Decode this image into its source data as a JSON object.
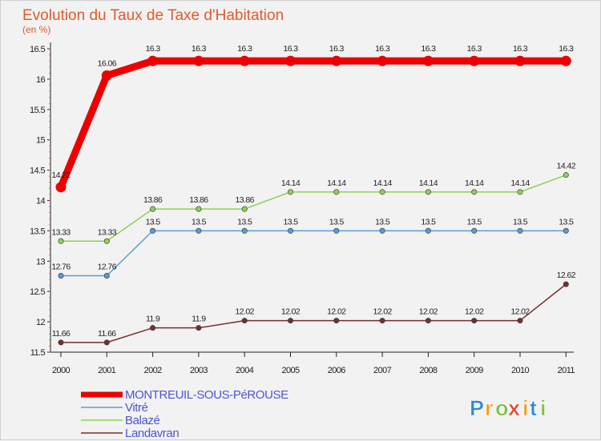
{
  "chart_data": {
    "type": "line",
    "title": "Evolution du Taux de Taxe d'Habitation",
    "subtitle": "(en %)",
    "xlabel": "",
    "ylabel": "",
    "ylim": [
      11.5,
      16.5
    ],
    "yticks": [
      11.5,
      12,
      12.5,
      13,
      13.5,
      14,
      14.5,
      15,
      15.5,
      16,
      16.5
    ],
    "ytick_labels": [
      "11.5",
      "12",
      "12.5",
      "13",
      "13.5",
      "14",
      "14.5",
      "15",
      "15.5",
      "16",
      "16.5"
    ],
    "categories": [
      "2000",
      "2001",
      "2002",
      "2003",
      "2004",
      "2005",
      "2006",
      "2007",
      "2008",
      "2009",
      "2010",
      "2011"
    ],
    "grid": false,
    "legend_position": "bottom-left",
    "series": [
      {
        "name": "MONTREUIL-SOUS-PéROUSE",
        "color": "#ee0000",
        "values": [
          14.22,
          16.06,
          16.3,
          16.3,
          16.3,
          16.3,
          16.3,
          16.3,
          16.3,
          16.3,
          16.3,
          16.3
        ],
        "labels": [
          "14.22",
          "16.06",
          "16.3",
          "16.3",
          "16.3",
          "16.3",
          "16.3",
          "16.3",
          "16.3",
          "16.3",
          "16.3",
          "16.3"
        ]
      },
      {
        "name": "Vitré",
        "color": "#5b9bd5",
        "values": [
          12.76,
          12.76,
          13.5,
          13.5,
          13.5,
          13.5,
          13.5,
          13.5,
          13.5,
          13.5,
          13.5,
          13.5
        ],
        "labels": [
          "12.76",
          "12.76",
          "13.5",
          "13.5",
          "13.5",
          "13.5",
          "13.5",
          "13.5",
          "13.5",
          "13.5",
          "13.5",
          "13.5"
        ]
      },
      {
        "name": "Balazé",
        "color": "#8ed156",
        "values": [
          13.33,
          13.33,
          13.86,
          13.86,
          13.86,
          14.14,
          14.14,
          14.14,
          14.14,
          14.14,
          14.14,
          14.42
        ],
        "labels": [
          "13.33",
          "13.33",
          "13.86",
          "13.86",
          "13.86",
          "14.14",
          "14.14",
          "14.14",
          "14.14",
          "14.14",
          "14.14",
          "14.42"
        ]
      },
      {
        "name": "Landavran",
        "color": "#7a2e2e",
        "values": [
          11.66,
          11.66,
          11.9,
          11.9,
          12.02,
          12.02,
          12.02,
          12.02,
          12.02,
          12.02,
          12.02,
          12.62
        ],
        "labels": [
          "11.66",
          "11.66",
          "11.9",
          "11.9",
          "12.02",
          "12.02",
          "12.02",
          "12.02",
          "12.02",
          "12.02",
          "12.02",
          "12.62"
        ]
      }
    ]
  },
  "logo": {
    "letters": [
      "P",
      "r",
      "o",
      "x",
      "i",
      "t",
      "i"
    ],
    "colors": [
      "#2a8ad6",
      "#f29b1a",
      "#7cc242",
      "#e8412c",
      "#f29b1a",
      "#2a8ad6",
      "#7cc242"
    ]
  }
}
